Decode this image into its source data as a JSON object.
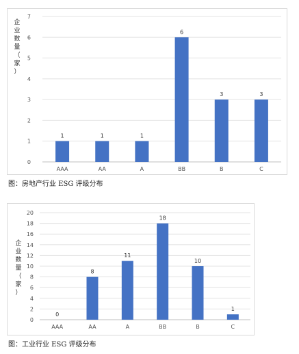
{
  "chart_data": [
    {
      "type": "bar",
      "title": "",
      "caption": "图：房地产行业 ESG 评级分布",
      "ylabel": "企业数量（家）",
      "xlabel": "",
      "categories": [
        "AAA",
        "AA",
        "A",
        "BB",
        "B",
        "C"
      ],
      "values": [
        1,
        1,
        1,
        6,
        3,
        3
      ],
      "ylim": [
        0,
        7
      ],
      "yticks": [
        0,
        1,
        2,
        3,
        4,
        5,
        6,
        7
      ],
      "grid": true,
      "legend": "none",
      "bar_color": "#4472c4"
    },
    {
      "type": "bar",
      "title": "",
      "caption": "图：工业行业 ESG 评级分布",
      "ylabel": "企业数量（家）",
      "xlabel": "",
      "categories": [
        "AAA",
        "AA",
        "A",
        "BB",
        "B",
        "C"
      ],
      "values": [
        0,
        8,
        11,
        18,
        10,
        1
      ],
      "ylim": [
        0,
        20
      ],
      "yticks": [
        0,
        2,
        4,
        6,
        8,
        10,
        12,
        14,
        16,
        18,
        20
      ],
      "grid": true,
      "legend": "none",
      "bar_color": "#4472c4"
    }
  ]
}
